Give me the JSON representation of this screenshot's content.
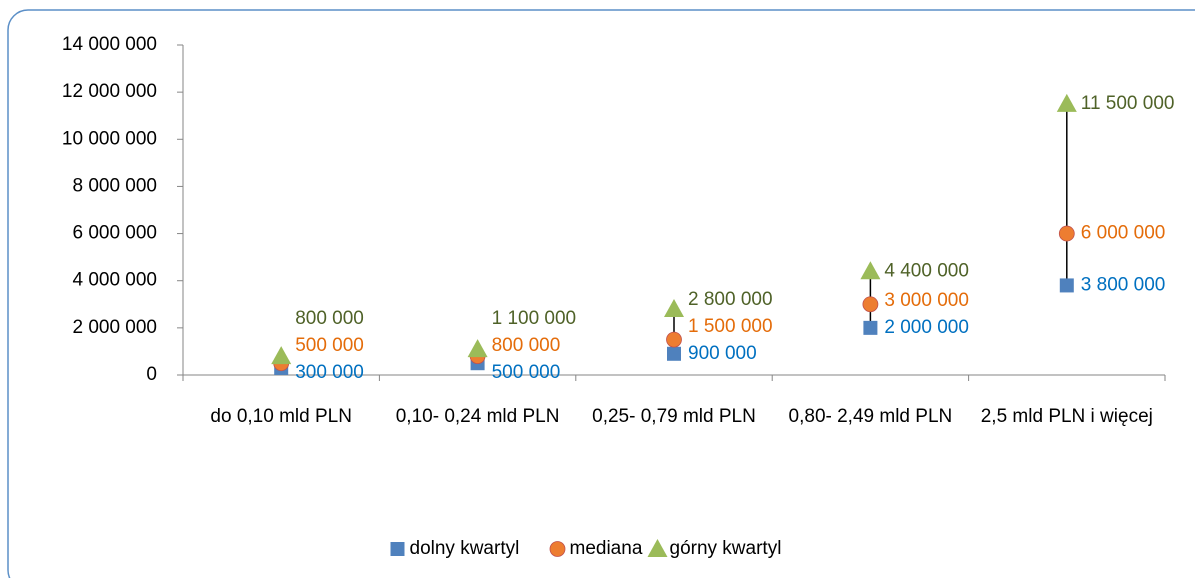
{
  "chart_data": {
    "type": "scatter",
    "categories": [
      "do 0,10 mld PLN",
      "0,10- 0,24 mld PLN",
      "0,25- 0,79 mld PLN",
      "0,80- 2,49 mld PLN",
      "2,5 mld PLN i więcej"
    ],
    "series": [
      {
        "name": "dolny kwartyl",
        "color": "#4f81bd",
        "marker": "square",
        "label_color": "#0070c0",
        "values": [
          300000,
          500000,
          900000,
          2000000,
          3800000
        ],
        "value_labels": [
          "300 000",
          "500 000",
          "900 000",
          "2 000 000",
          "3 800 000"
        ]
      },
      {
        "name": "mediana",
        "color": "#ed7d31",
        "marker": "circle",
        "label_color": "#e46c0a",
        "values": [
          500000,
          800000,
          1500000,
          3000000,
          6000000
        ],
        "value_labels": [
          "500 000",
          "800 000",
          "1 500 000",
          "3 000 000",
          "6 000 000"
        ]
      },
      {
        "name": "górny kwartyl",
        "color": "#9bbb59",
        "marker": "triangle",
        "label_color": "#4f6228",
        "values": [
          800000,
          1100000,
          2800000,
          4400000,
          11500000
        ],
        "value_labels": [
          "800 000",
          "1 100 000",
          "2 800 000",
          "4 400 000",
          "11 500 000"
        ]
      }
    ],
    "ylim": [
      0,
      14000000
    ],
    "yticks": [
      {
        "value": 0,
        "label": "0"
      },
      {
        "value": 2000000,
        "label": "2 000 000"
      },
      {
        "value": 4000000,
        "label": "4 000 000"
      },
      {
        "value": 6000000,
        "label": "6 000 000"
      },
      {
        "value": 8000000,
        "label": "8 000 000"
      },
      {
        "value": 10000000,
        "label": "10 000 000"
      },
      {
        "value": 12000000,
        "label": "12 000 000"
      },
      {
        "value": 14000000,
        "label": "14 000 000"
      }
    ],
    "high_low_lines": true,
    "legend": "bottom"
  }
}
